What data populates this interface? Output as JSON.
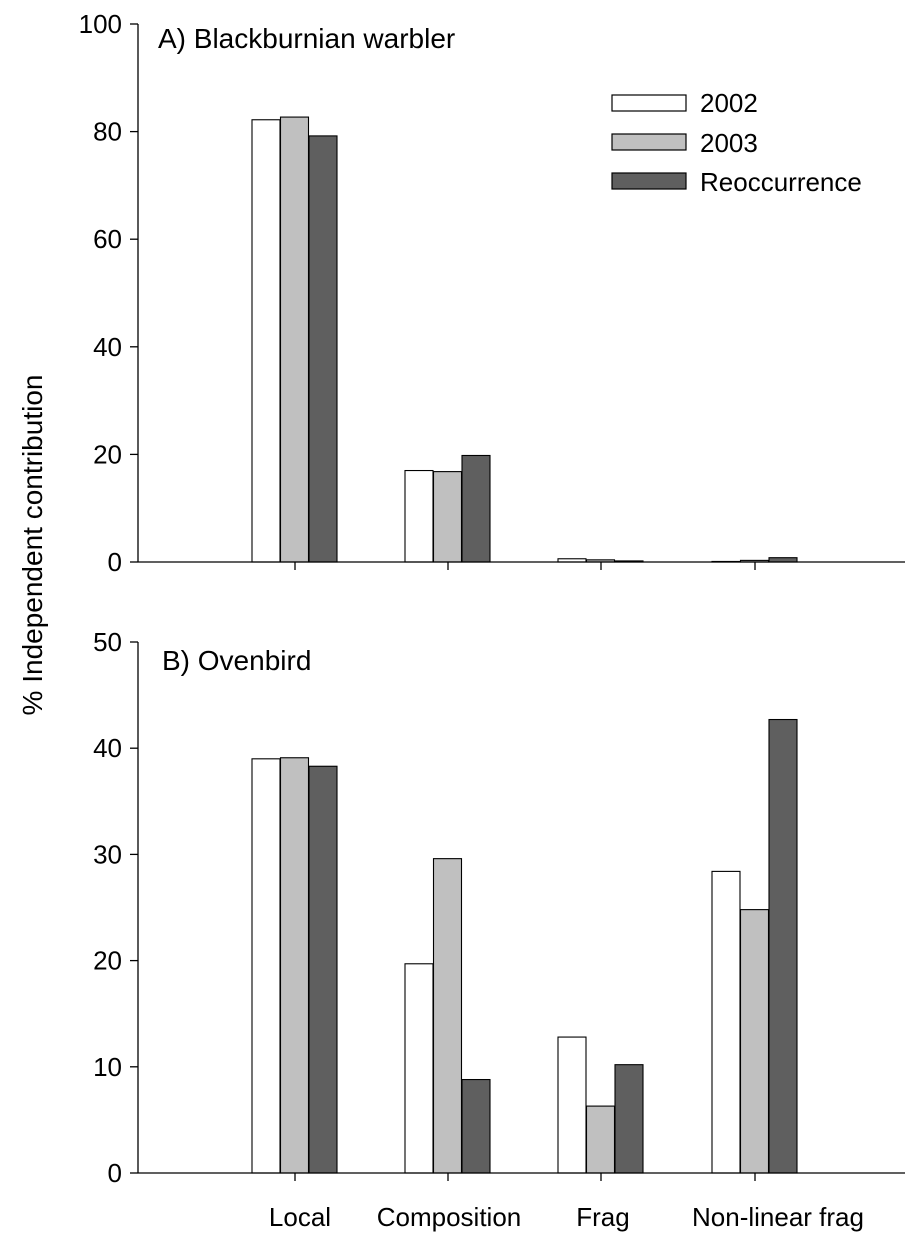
{
  "chart_data": {
    "type": "bar",
    "ylabel": "% Independent contribution",
    "categories": [
      "Local",
      "Composition",
      "Frag",
      "Non-linear frag"
    ],
    "legend": {
      "position": "top-right",
      "entries": [
        {
          "name": "2002",
          "color": "#ffffff"
        },
        {
          "name": "2003",
          "color": "#c0c0c0"
        },
        {
          "name": "Reoccurrence",
          "color": "#5f5f5f"
        }
      ]
    },
    "panels": [
      {
        "title": "A) Blackburnian warbler",
        "ylim": [
          0,
          100
        ],
        "yticks": [
          "0",
          "20",
          "40",
          "60",
          "80",
          "100"
        ],
        "series": [
          {
            "name": "2002",
            "values": [
              82.2,
              17.0,
              0.6,
              0.1
            ]
          },
          {
            "name": "2003",
            "values": [
              82.7,
              16.8,
              0.4,
              0.3
            ]
          },
          {
            "name": "Reoccurrence",
            "values": [
              79.2,
              19.8,
              0.2,
              0.8
            ]
          }
        ]
      },
      {
        "title": "B) Ovenbird",
        "ylim": [
          0,
          50
        ],
        "yticks": [
          "0",
          "10",
          "20",
          "30",
          "40",
          "50"
        ],
        "series": [
          {
            "name": "2002",
            "values": [
              39.0,
              19.7,
              12.8,
              28.4
            ]
          },
          {
            "name": "2003",
            "values": [
              39.1,
              29.6,
              6.3,
              24.8
            ]
          },
          {
            "name": "Reoccurrence",
            "values": [
              38.3,
              8.8,
              10.2,
              42.7
            ]
          }
        ]
      }
    ]
  }
}
